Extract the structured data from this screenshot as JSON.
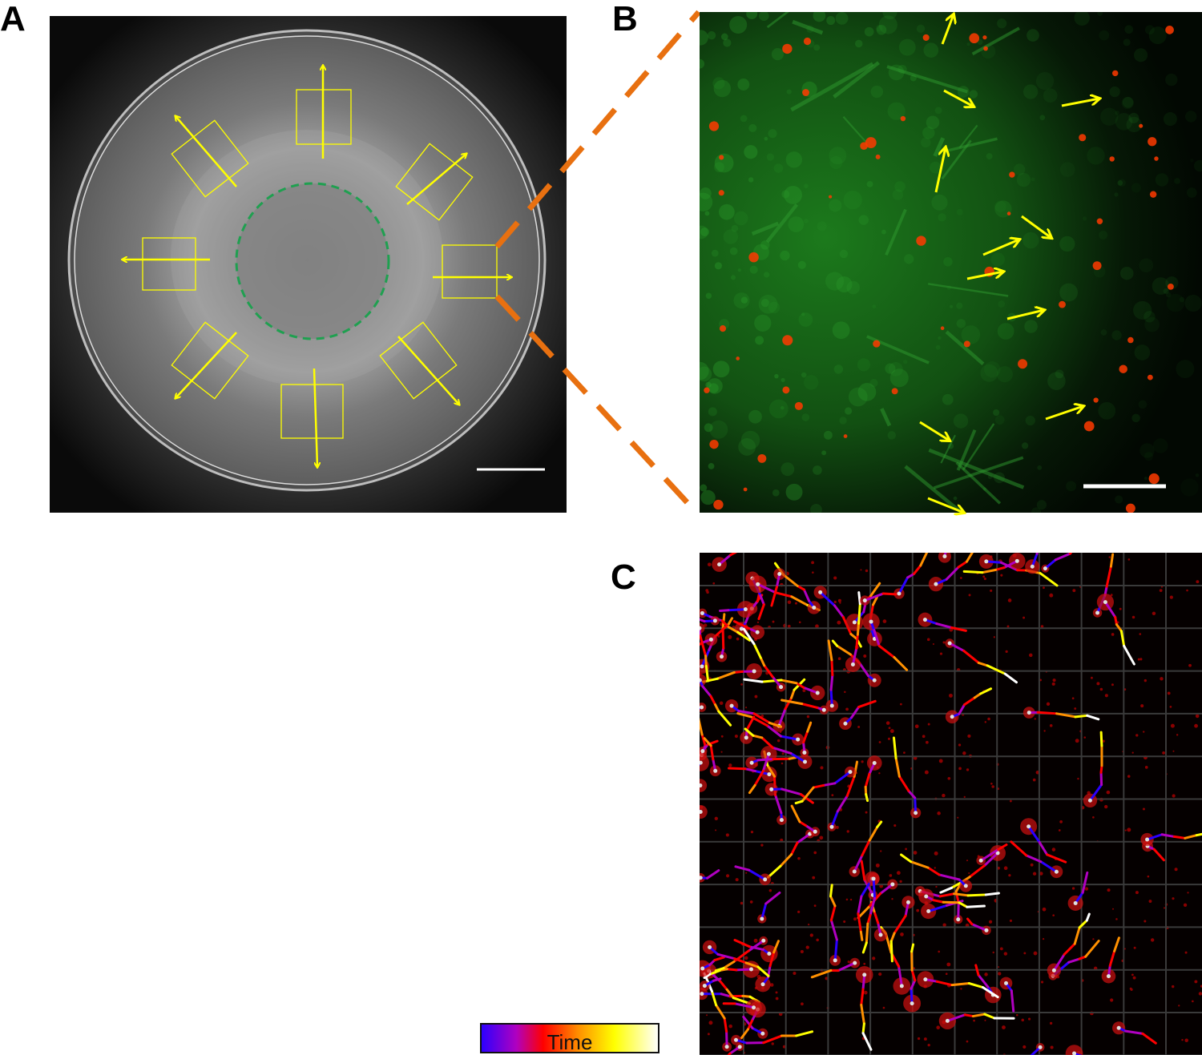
{
  "panels": {
    "a": {
      "label": "A"
    },
    "b": {
      "label": "B"
    },
    "c": {
      "label": "C"
    }
  },
  "colorbar": {
    "label": "Time",
    "colors": [
      "#2a00ff",
      "#b000c0",
      "#ff0000",
      "#ff9000",
      "#ffff00",
      "#ffffff"
    ]
  },
  "colors": {
    "arrow": "#ffff00",
    "dashed_boundary": "#1fa050",
    "zoom_lines": "#e87010",
    "scale_bar": "#ffffff",
    "fluorescence_green": "#1e8a1e",
    "cells_red": "#ff2a00"
  }
}
